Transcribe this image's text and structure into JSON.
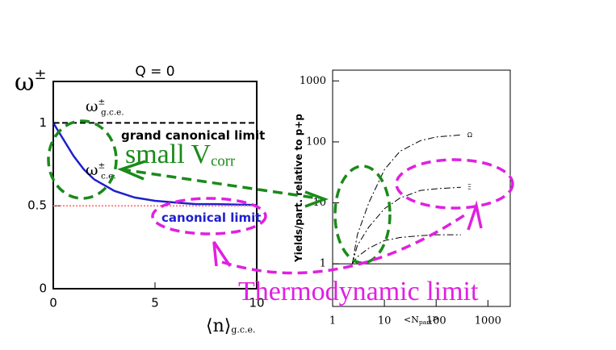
{
  "chart_data": [
    {
      "type": "line",
      "title": "Q = 0",
      "y_label": {
        "text": "ω",
        "sup": "±"
      },
      "x_label": {
        "text": "⟨n⟩",
        "sub": "g.c.e."
      },
      "xlim": [
        0,
        10
      ],
      "ylim": [
        0,
        1.25
      ],
      "xticks": [
        0,
        5,
        10
      ],
      "yticks": [
        0,
        0.5,
        1
      ],
      "x": [
        0,
        0.5,
        1,
        1.5,
        2,
        3,
        4,
        5,
        6,
        7,
        8,
        10
      ],
      "series": [
        {
          "color": "#1f1fd0",
          "style": "solid",
          "values": [
            1,
            0.9,
            0.8,
            0.72,
            0.66,
            0.59,
            0.55,
            0.53,
            0.52,
            0.51,
            0.51,
            0.505
          ]
        },
        {
          "color": "#000000",
          "style": "dashed",
          "values": [
            1,
            1,
            1,
            1,
            1,
            1,
            1,
            1,
            1,
            1,
            1,
            1
          ]
        },
        {
          "color": "#ff8080",
          "style": "dotted",
          "values": [
            0.5,
            0.5,
            0.5,
            0.5,
            0.5,
            0.5,
            0.5,
            0.5,
            0.5,
            0.5,
            0.5,
            0.5
          ]
        }
      ],
      "annotations": [
        {
          "text": "ω",
          "sup": "±",
          "sub": "g.c.e."
        },
        {
          "text": "grand canonical limit"
        },
        {
          "text": "ω",
          "sup": "±",
          "sub": "c.e."
        },
        {
          "text": "canonical limit"
        },
        {
          "text": "small V",
          "sub": "corr"
        }
      ]
    },
    {
      "type": "line",
      "log_x": true,
      "log_y": true,
      "y_label": {
        "text": "Yields/part. relative to p+p"
      },
      "x_label": {
        "text": "<N",
        "sub": "part",
        "tail": ">"
      },
      "xlim": [
        1,
        2700
      ],
      "ylim": [
        0.2,
        1500
      ],
      "xticks": [
        1,
        10,
        100,
        1000
      ],
      "yticks": [
        1,
        10,
        100,
        1000
      ],
      "reference_line": 1,
      "x": [
        2.4,
        3,
        5,
        10,
        20,
        50,
        100,
        300
      ],
      "series": [
        {
          "name": "Ω",
          "color": "#000000",
          "values": [
            1,
            3,
            10,
            35,
            70,
            105,
            120,
            130
          ]
        },
        {
          "name": "Ξ",
          "color": "#000000",
          "values": [
            1,
            2,
            4,
            8,
            12,
            16,
            17,
            18
          ]
        },
        {
          "color": "#000000",
          "values": [
            1,
            1.3,
            1.8,
            2.4,
            2.7,
            2.9,
            3,
            3
          ]
        }
      ],
      "annotations": [
        {
          "text": "Thermodynamic limit"
        }
      ]
    }
  ]
}
